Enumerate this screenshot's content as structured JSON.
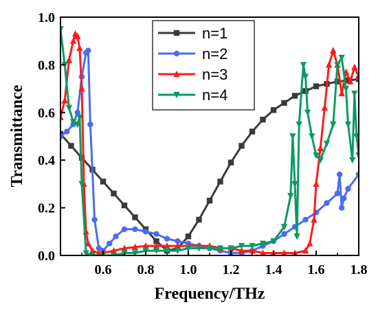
{
  "chart_data": {
    "type": "line",
    "xlabel": "Frequency/THz",
    "ylabel": "Transmittance",
    "xlim": [
      0.4,
      1.8
    ],
    "ylim": [
      0.0,
      1.0
    ],
    "xticks": [
      "0.6",
      "0.8",
      "1.0",
      "1.2",
      "1.4",
      "1.6",
      "1.8"
    ],
    "yticks": [
      "0.0",
      "0.2",
      "0.4",
      "0.6",
      "0.8",
      "1.0"
    ],
    "grid": false,
    "legend_position": "top-center",
    "series": [
      {
        "name": "n=1",
        "color": "#3a3a3a",
        "marker": "square",
        "x": [
          0.4,
          0.45,
          0.5,
          0.55,
          0.6,
          0.65,
          0.7,
          0.75,
          0.8,
          0.85,
          0.9,
          0.95,
          1.0,
          1.05,
          1.1,
          1.15,
          1.2,
          1.25,
          1.3,
          1.35,
          1.4,
          1.45,
          1.5,
          1.55,
          1.6,
          1.65,
          1.7,
          1.75,
          1.8
        ],
        "y": [
          0.51,
          0.46,
          0.41,
          0.36,
          0.31,
          0.26,
          0.21,
          0.16,
          0.11,
          0.06,
          0.02,
          0.03,
          0.08,
          0.15,
          0.23,
          0.31,
          0.39,
          0.46,
          0.52,
          0.57,
          0.61,
          0.64,
          0.67,
          0.69,
          0.71,
          0.72,
          0.73,
          0.735,
          0.74
        ]
      },
      {
        "name": "n=2",
        "color": "#4a6cf0",
        "marker": "circle",
        "x": [
          0.4,
          0.43,
          0.46,
          0.48,
          0.5,
          0.52,
          0.53,
          0.54,
          0.56,
          0.58,
          0.6,
          0.63,
          0.66,
          0.7,
          0.75,
          0.8,
          0.85,
          0.9,
          0.95,
          1.0,
          1.05,
          1.1,
          1.15,
          1.2,
          1.25,
          1.3,
          1.35,
          1.4,
          1.45,
          1.5,
          1.55,
          1.6,
          1.65,
          1.7,
          1.71,
          1.72,
          1.73,
          1.75,
          1.8
        ],
        "y": [
          0.5,
          0.52,
          0.55,
          0.6,
          0.75,
          0.85,
          0.86,
          0.55,
          0.15,
          0.03,
          0.02,
          0.05,
          0.08,
          0.11,
          0.11,
          0.1,
          0.09,
          0.07,
          0.06,
          0.05,
          0.04,
          0.03,
          0.02,
          0.01,
          0.01,
          0.02,
          0.04,
          0.06,
          0.09,
          0.12,
          0.15,
          0.18,
          0.22,
          0.26,
          0.34,
          0.2,
          0.24,
          0.28,
          0.34
        ]
      },
      {
        "name": "n=3",
        "color": "#ff1a1a",
        "marker": "triangle-up",
        "x": [
          0.4,
          0.42,
          0.44,
          0.46,
          0.47,
          0.48,
          0.49,
          0.5,
          0.51,
          0.52,
          0.53,
          0.55,
          0.58,
          0.6,
          0.65,
          0.7,
          0.75,
          0.8,
          0.85,
          0.9,
          0.95,
          1.0,
          1.05,
          1.1,
          1.15,
          1.2,
          1.25,
          1.3,
          1.35,
          1.4,
          1.45,
          1.5,
          1.55,
          1.57,
          1.59,
          1.6,
          1.62,
          1.64,
          1.66,
          1.68,
          1.7,
          1.72,
          1.74,
          1.76,
          1.78,
          1.8
        ],
        "y": [
          0.58,
          0.65,
          0.82,
          0.9,
          0.93,
          0.92,
          0.87,
          0.7,
          0.3,
          0.1,
          0.05,
          0.02,
          0.01,
          0.01,
          0.02,
          0.03,
          0.035,
          0.04,
          0.04,
          0.04,
          0.04,
          0.04,
          0.04,
          0.04,
          0.03,
          0.03,
          0.02,
          0.02,
          0.01,
          0.01,
          0.01,
          0.01,
          0.02,
          0.05,
          0.15,
          0.3,
          0.45,
          0.62,
          0.8,
          0.86,
          0.8,
          0.68,
          0.77,
          0.73,
          0.79,
          0.75
        ]
      },
      {
        "name": "n=4",
        "color": "#0a9a64",
        "marker": "triangle-down",
        "x": [
          0.4,
          0.42,
          0.44,
          0.46,
          0.48,
          0.49,
          0.5,
          0.52,
          0.55,
          0.6,
          0.65,
          0.7,
          0.75,
          0.8,
          0.85,
          0.9,
          0.95,
          1.0,
          1.05,
          1.1,
          1.15,
          1.2,
          1.25,
          1.3,
          1.35,
          1.4,
          1.45,
          1.48,
          1.49,
          1.5,
          1.51,
          1.52,
          1.54,
          1.55,
          1.56,
          1.58,
          1.6,
          1.62,
          1.65,
          1.68,
          1.7,
          1.72,
          1.74,
          1.75,
          1.77,
          1.78,
          1.79,
          1.8
        ],
        "y": [
          0.95,
          0.8,
          0.62,
          0.56,
          0.55,
          0.58,
          0.3,
          0.01,
          0.0,
          0.0,
          0.0,
          0.01,
          0.01,
          0.02,
          0.02,
          0.02,
          0.02,
          0.03,
          0.03,
          0.03,
          0.03,
          0.03,
          0.04,
          0.04,
          0.05,
          0.06,
          0.12,
          0.25,
          0.5,
          0.3,
          0.08,
          0.55,
          0.8,
          0.75,
          0.6,
          0.5,
          0.42,
          0.4,
          0.47,
          0.55,
          0.8,
          0.83,
          0.7,
          0.55,
          0.4,
          0.68,
          0.5,
          0.42
        ]
      }
    ]
  }
}
